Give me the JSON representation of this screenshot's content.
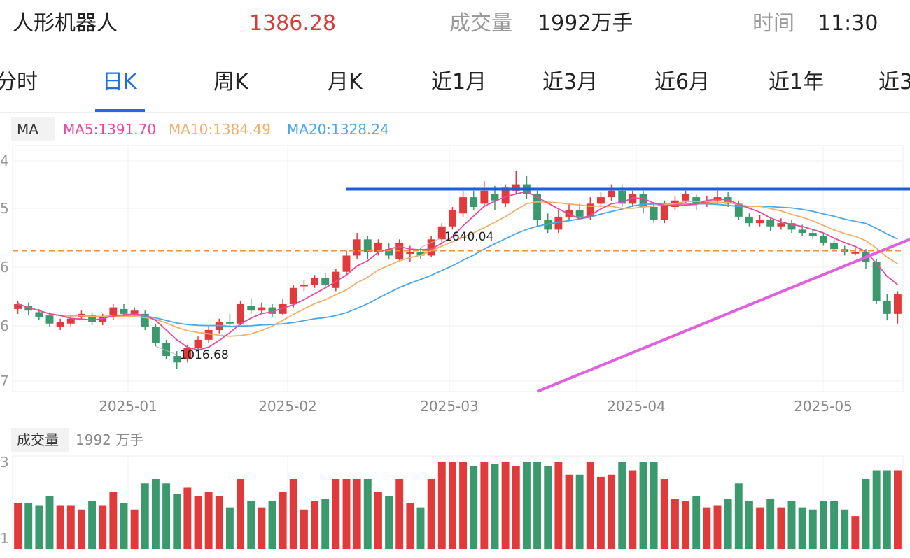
{
  "header": {
    "name": "人形机器人",
    "price": "1386.28",
    "volume_label": "成交量",
    "volume_value": "1992万手",
    "time_label": "时间",
    "time_value": "11:30"
  },
  "tabs": [
    "分时",
    "日K",
    "周K",
    "月K",
    "近1月",
    "近3月",
    "近6月",
    "近1年",
    "近3"
  ],
  "active_tab": 1,
  "indicators": {
    "ma_tag": "MA",
    "ma5": "MA5:1391.70",
    "ma10": "MA10:1384.49",
    "ma20": "MA20:1328.24"
  },
  "volume_panel": {
    "tag": "成交量",
    "value": "1992 万手"
  },
  "colors": {
    "up": "#e03a3a",
    "down": "#3a9a6e",
    "ma5": "#e64b9e",
    "ma10": "#f0b06a",
    "ma20": "#4aa8e8",
    "resistance": "#1f5fd6",
    "support": "#e060e0",
    "reference": "#f0903a",
    "accent": "#1f6fe0"
  },
  "chart_data": {
    "type": "candlestick",
    "x_ticks": [
      "2025-01",
      "2025-02",
      "2025-03",
      "2025-04",
      "2025-05"
    ],
    "y_tick_labels_partial": [
      "4",
      "5",
      "6",
      "6",
      "7"
    ],
    "y_range": [
      960,
      1720
    ],
    "annotations": [
      {
        "label": "1640.04",
        "type": "max",
        "index": 38
      },
      {
        "label": "1016.68",
        "type": "min",
        "index": 13
      }
    ],
    "reference_level": 1395,
    "resistance_level": 1585,
    "support_trendline": {
      "from_index": 49,
      "from_value": 960,
      "to_index": 83,
      "to_value": 1415
    },
    "candles": [
      [
        1215,
        1230,
        1240,
        1200
      ],
      [
        1225,
        1210,
        1235,
        1195
      ],
      [
        1205,
        1190,
        1215,
        1180
      ],
      [
        1195,
        1170,
        1205,
        1160
      ],
      [
        1160,
        1175,
        1185,
        1150
      ],
      [
        1170,
        1185,
        1195,
        1160
      ],
      [
        1190,
        1200,
        1210,
        1180
      ],
      [
        1195,
        1175,
        1205,
        1165
      ],
      [
        1175,
        1190,
        1200,
        1165
      ],
      [
        1190,
        1220,
        1230,
        1180
      ],
      [
        1215,
        1200,
        1230,
        1190
      ],
      [
        1200,
        1210,
        1220,
        1190
      ],
      [
        1200,
        1160,
        1210,
        1150
      ],
      [
        1160,
        1110,
        1170,
        1100
      ],
      [
        1110,
        1070,
        1120,
        1060
      ],
      [
        1070,
        1050,
        1085,
        1030
      ],
      [
        1060,
        1095,
        1105,
        1050
      ],
      [
        1095,
        1120,
        1130,
        1085
      ],
      [
        1120,
        1150,
        1160,
        1110
      ],
      [
        1150,
        1175,
        1185,
        1140
      ],
      [
        1175,
        1170,
        1200,
        1160
      ],
      [
        1170,
        1230,
        1240,
        1165
      ],
      [
        1225,
        1210,
        1245,
        1200
      ],
      [
        1210,
        1220,
        1235,
        1200
      ],
      [
        1220,
        1200,
        1230,
        1190
      ],
      [
        1200,
        1230,
        1245,
        1195
      ],
      [
        1230,
        1280,
        1290,
        1220
      ],
      [
        1285,
        1290,
        1305,
        1270
      ],
      [
        1290,
        1310,
        1320,
        1280
      ],
      [
        1310,
        1290,
        1325,
        1280
      ],
      [
        1280,
        1330,
        1340,
        1270
      ],
      [
        1330,
        1380,
        1395,
        1320
      ],
      [
        1380,
        1430,
        1450,
        1370
      ],
      [
        1430,
        1390,
        1440,
        1370
      ],
      [
        1390,
        1420,
        1430,
        1380
      ],
      [
        1400,
        1380,
        1420,
        1370
      ],
      [
        1370,
        1420,
        1430,
        1360
      ],
      [
        1385,
        1390,
        1410,
        1360
      ],
      [
        1390,
        1380,
        1405,
        1370
      ],
      [
        1380,
        1430,
        1440,
        1375
      ],
      [
        1430,
        1470,
        1480,
        1420
      ],
      [
        1470,
        1520,
        1530,
        1460
      ],
      [
        1510,
        1560,
        1580,
        1500
      ],
      [
        1560,
        1530,
        1580,
        1520
      ],
      [
        1540,
        1580,
        1610,
        1530
      ],
      [
        1570,
        1550,
        1595,
        1520
      ],
      [
        1540,
        1590,
        1600,
        1530
      ],
      [
        1580,
        1600,
        1640,
        1570
      ],
      [
        1600,
        1570,
        1625,
        1555
      ],
      [
        1570,
        1490,
        1580,
        1470
      ],
      [
        1490,
        1460,
        1510,
        1450
      ],
      [
        1460,
        1500,
        1520,
        1450
      ],
      [
        1500,
        1520,
        1540,
        1490
      ],
      [
        1520,
        1500,
        1540,
        1490
      ],
      [
        1500,
        1540,
        1560,
        1490
      ],
      [
        1540,
        1560,
        1575,
        1530
      ],
      [
        1560,
        1580,
        1600,
        1550
      ],
      [
        1580,
        1540,
        1600,
        1530
      ],
      [
        1540,
        1570,
        1580,
        1530
      ],
      [
        1570,
        1530,
        1580,
        1510
      ],
      [
        1530,
        1490,
        1545,
        1480
      ],
      [
        1490,
        1540,
        1550,
        1480
      ],
      [
        1530,
        1550,
        1565,
        1520
      ],
      [
        1550,
        1570,
        1580,
        1540
      ],
      [
        1560,
        1540,
        1570,
        1520
      ],
      [
        1540,
        1550,
        1565,
        1530
      ],
      [
        1550,
        1560,
        1580,
        1540
      ],
      [
        1560,
        1540,
        1575,
        1530
      ],
      [
        1540,
        1500,
        1550,
        1490
      ],
      [
        1500,
        1480,
        1510,
        1470
      ],
      [
        1480,
        1490,
        1505,
        1470
      ],
      [
        1490,
        1470,
        1500,
        1455
      ],
      [
        1470,
        1480,
        1495,
        1460
      ],
      [
        1480,
        1460,
        1490,
        1450
      ],
      [
        1460,
        1450,
        1475,
        1440
      ],
      [
        1450,
        1440,
        1460,
        1430
      ],
      [
        1440,
        1420,
        1450,
        1410
      ],
      [
        1420,
        1400,
        1430,
        1390
      ],
      [
        1400,
        1390,
        1410,
        1380
      ],
      [
        1390,
        1390,
        1405,
        1380
      ],
      [
        1390,
        1360,
        1400,
        1340
      ],
      [
        1360,
        1240,
        1370,
        1230
      ],
      [
        1240,
        1200,
        1260,
        1180
      ],
      [
        1200,
        1260,
        1270,
        1170
      ]
    ]
  }
}
